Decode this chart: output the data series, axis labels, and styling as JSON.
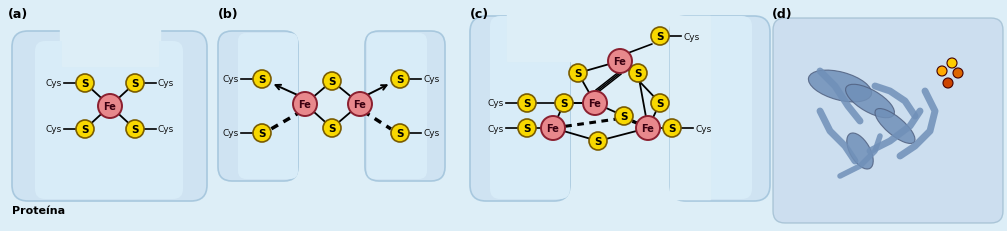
{
  "bg_color": "#ddeef7",
  "panel_bg": "#cfe3f2",
  "panel_edge": "#a8c8de",
  "fe_color": "#e8888c",
  "fe_edge": "#8B2030",
  "s_color": "#f8d800",
  "s_edge": "#7a5c00",
  "text_dark": "#111111",
  "label_a": "(a)",
  "label_b": "(b)",
  "label_c": "(c)",
  "label_d": "(d)",
  "proteina": "Proteína"
}
